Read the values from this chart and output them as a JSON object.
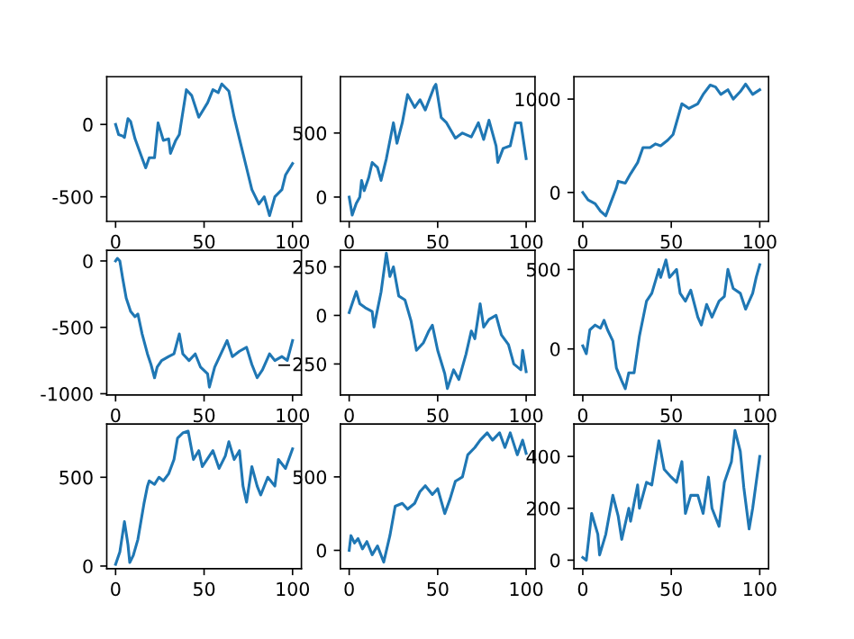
{
  "chart_data": [
    {
      "type": "line",
      "xlim": [
        -5,
        105
      ],
      "ylim": [
        -670,
        330
      ],
      "xticks": [
        0,
        50,
        100
      ],
      "yticks": [
        -500,
        0
      ],
      "color": "#1f77b4",
      "grid": false,
      "x": [
        0,
        1.7,
        4,
        5,
        7,
        8.5,
        11,
        14,
        17,
        19,
        22,
        24,
        27,
        30,
        31,
        34,
        36,
        40,
        43,
        47,
        52,
        55,
        58,
        60,
        64,
        67,
        70,
        74,
        77,
        81,
        84,
        87,
        90,
        94,
        96,
        100
      ],
      "values": [
        0,
        -70,
        -80,
        -90,
        40,
        20,
        -100,
        -200,
        -300,
        -230,
        -230,
        10,
        -110,
        -100,
        -200,
        -110,
        -70,
        240,
        200,
        50,
        150,
        240,
        220,
        280,
        230,
        50,
        -100,
        -300,
        -450,
        -550,
        -500,
        -630,
        -500,
        -450,
        -350,
        -270
      ]
    },
    {
      "type": "line",
      "xlim": [
        -5,
        105
      ],
      "ylim": [
        -190,
        940
      ],
      "xticks": [
        0,
        50,
        100
      ],
      "yticks": [
        0,
        500
      ],
      "color": "#1f77b4",
      "grid": false,
      "x": [
        0,
        1.7,
        4,
        6,
        7,
        8.5,
        11,
        13,
        16,
        18,
        21,
        25,
        27,
        30,
        33,
        37,
        40,
        43,
        48,
        49,
        52,
        55,
        60,
        64,
        69,
        73,
        76,
        79,
        83,
        84,
        87,
        91,
        94,
        97,
        100
      ],
      "values": [
        0,
        -140,
        -50,
        0,
        130,
        50,
        150,
        270,
        230,
        130,
        300,
        580,
        420,
        580,
        800,
        700,
        760,
        680,
        860,
        880,
        620,
        580,
        460,
        500,
        470,
        580,
        450,
        600,
        400,
        270,
        380,
        400,
        580,
        580,
        300
      ]
    },
    {
      "type": "line",
      "xlim": [
        -5,
        105
      ],
      "ylim": [
        -310,
        1240
      ],
      "xticks": [
        0,
        50,
        100
      ],
      "yticks": [
        0,
        1000
      ],
      "color": "#1f77b4",
      "grid": false,
      "x": [
        0,
        3,
        7,
        10,
        13,
        15,
        19,
        20,
        24,
        27,
        31,
        34,
        38,
        41,
        44,
        48,
        51,
        56,
        60,
        65,
        68,
        72,
        75,
        78,
        82,
        85,
        89,
        92,
        96,
        100
      ],
      "values": [
        0,
        -80,
        -120,
        -200,
        -250,
        -150,
        50,
        120,
        100,
        200,
        320,
        480,
        480,
        520,
        500,
        560,
        620,
        950,
        900,
        950,
        1050,
        1150,
        1130,
        1050,
        1100,
        1000,
        1080,
        1160,
        1050,
        1100
      ]
    },
    {
      "type": "line",
      "xlim": [
        -5,
        105
      ],
      "ylim": [
        -1010,
        80
      ],
      "xticks": [
        0,
        50,
        100
      ],
      "yticks": [
        -1000,
        -500,
        0
      ],
      "color": "#1f77b4",
      "grid": false,
      "x": [
        0,
        1,
        2.4,
        4,
        6,
        8.5,
        11,
        12.6,
        15,
        18,
        20,
        22,
        23.5,
        26,
        30,
        33,
        36,
        38,
        41.5,
        45,
        48,
        52,
        53,
        56,
        59.5,
        63,
        66,
        70,
        74,
        77,
        80,
        83,
        87,
        90,
        94,
        97,
        100
      ],
      "values": [
        0,
        20,
        0,
        -130,
        -280,
        -380,
        -420,
        -400,
        -550,
        -700,
        -780,
        -880,
        -800,
        -750,
        -720,
        -700,
        -550,
        -700,
        -750,
        -700,
        -800,
        -850,
        -950,
        -800,
        -700,
        -600,
        -720,
        -680,
        -650,
        -780,
        -880,
        -820,
        -700,
        -750,
        -720,
        -750,
        -600
      ]
    },
    {
      "type": "line",
      "xlim": [
        -5,
        105
      ],
      "ylim": [
        -410,
        335
      ],
      "xticks": [
        0,
        50,
        100
      ],
      "yticks": [
        {
          "value": -250,
          "label": "−250"
        },
        0,
        250
      ],
      "color": "#1f77b4",
      "grid": false,
      "x": [
        0,
        2.4,
        4,
        6,
        9,
        13,
        14,
        18,
        21,
        23,
        25,
        28,
        31.5,
        35,
        38,
        42,
        45,
        47,
        50,
        54,
        55.5,
        59,
        62,
        66,
        69,
        71,
        74,
        76,
        79,
        83,
        86,
        90,
        93,
        97,
        98,
        100
      ],
      "values": [
        15,
        80,
        123,
        60,
        40,
        20,
        -60,
        120,
        320,
        200,
        250,
        100,
        80,
        -30,
        -180,
        -140,
        -80,
        -50,
        -180,
        -300,
        -376,
        -280,
        -330,
        -200,
        -80,
        -120,
        60,
        -60,
        -20,
        0,
        -100,
        -150,
        -250,
        -280,
        -180,
        -290
      ]
    },
    {
      "type": "line",
      "xlim": [
        -5,
        105
      ],
      "ylim": [
        -290,
        620
      ],
      "xticks": [
        0,
        50,
        100
      ],
      "yticks": [
        0,
        500
      ],
      "color": "#1f77b4",
      "grid": false,
      "x": [
        0,
        2,
        4,
        7,
        10,
        12,
        14,
        17,
        19,
        22,
        24,
        26,
        29,
        32,
        36,
        39,
        43,
        44,
        47,
        49,
        53,
        55,
        58,
        61,
        65,
        67,
        70,
        73,
        77,
        80,
        82,
        85,
        89,
        92,
        96,
        98,
        100
      ],
      "values": [
        20,
        -30,
        120,
        150,
        130,
        180,
        120,
        50,
        -120,
        -200,
        -250,
        -150,
        -150,
        80,
        300,
        350,
        500,
        450,
        560,
        450,
        500,
        350,
        300,
        370,
        200,
        150,
        280,
        200,
        300,
        330,
        500,
        380,
        350,
        250,
        350,
        450,
        530
      ]
    },
    {
      "type": "line",
      "xlim": [
        -5,
        105
      ],
      "ylim": [
        -15,
        800
      ],
      "xticks": [
        0,
        50,
        100
      ],
      "yticks": [
        0,
        500
      ],
      "color": "#1f77b4",
      "grid": false,
      "x": [
        0,
        2.4,
        5,
        7,
        8,
        10,
        12.6,
        16,
        18,
        19,
        22,
        24.5,
        27,
        30,
        33,
        35,
        38,
        41,
        44,
        47,
        49,
        53,
        55,
        58.5,
        62,
        64,
        67,
        70,
        72,
        74,
        77,
        80,
        82,
        86,
        90,
        92,
        96,
        100
      ],
      "values": [
        10,
        80,
        250,
        120,
        20,
        60,
        150,
        350,
        450,
        480,
        460,
        500,
        480,
        520,
        600,
        720,
        750,
        760,
        600,
        650,
        560,
        620,
        650,
        550,
        620,
        700,
        600,
        650,
        450,
        360,
        560,
        450,
        400,
        500,
        450,
        600,
        550,
        660
      ]
    },
    {
      "type": "line",
      "xlim": [
        -5,
        105
      ],
      "ylim": [
        -125,
        860
      ],
      "xticks": [
        0,
        50,
        100
      ],
      "yticks": [
        0,
        500
      ],
      "color": "#1f77b4",
      "grid": false,
      "x": [
        0,
        1,
        3,
        5,
        7.5,
        10,
        13,
        16,
        19.5,
        23,
        26,
        30,
        33,
        37,
        40,
        43,
        47,
        50,
        54,
        57,
        60,
        64,
        67,
        71,
        74,
        78,
        81,
        85,
        88,
        91,
        95,
        98,
        100
      ],
      "values": [
        0,
        100,
        50,
        80,
        10,
        60,
        -30,
        30,
        -80,
        100,
        300,
        320,
        280,
        320,
        400,
        440,
        380,
        420,
        250,
        350,
        470,
        500,
        650,
        700,
        750,
        800,
        750,
        800,
        700,
        800,
        650,
        750,
        660
      ]
    },
    {
      "type": "line",
      "xlim": [
        -5,
        105
      ],
      "ylim": [
        -33,
        525
      ],
      "xticks": [
        0,
        50,
        100
      ],
      "yticks": [
        0,
        200,
        400
      ],
      "color": "#1f77b4",
      "grid": false,
      "x": [
        0,
        2,
        5,
        8.5,
        9.5,
        13,
        17,
        20,
        22,
        26,
        27,
        31,
        32,
        36,
        39,
        43,
        46,
        50,
        53,
        56,
        58,
        61,
        65,
        68,
        71,
        73,
        77,
        80,
        84,
        86,
        89,
        91,
        94,
        96,
        100
      ],
      "values": [
        10,
        0,
        180,
        100,
        20,
        100,
        250,
        170,
        80,
        200,
        150,
        290,
        200,
        300,
        290,
        460,
        350,
        320,
        300,
        380,
        180,
        250,
        250,
        180,
        320,
        200,
        130,
        300,
        380,
        500,
        420,
        280,
        120,
        200,
        400
      ]
    }
  ]
}
